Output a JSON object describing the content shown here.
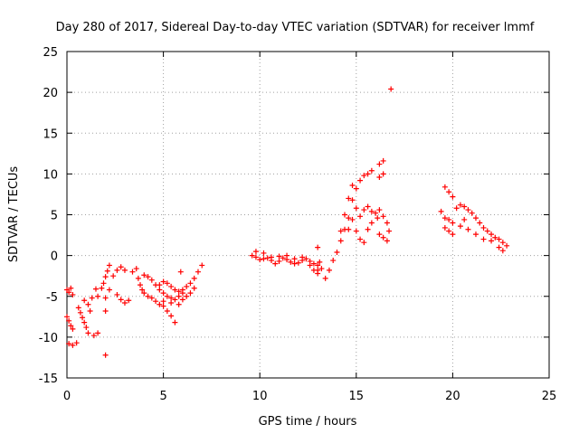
{
  "chart_data": {
    "type": "scatter",
    "title": "Day 280 of 2017, Sidereal Day-to-day VTEC variation (SDTVAR) for receiver lmmf",
    "xlabel": "GPS time / hours",
    "ylabel": "SDTVAR / TECUs",
    "xlim": [
      0,
      25
    ],
    "ylim": [
      -15,
      25
    ],
    "xticks": [
      "0",
      "5",
      "10",
      "15",
      "20",
      "25"
    ],
    "yticks": [
      "-15",
      "-10",
      "-5",
      "0",
      "5",
      "10",
      "15",
      "20",
      "25"
    ],
    "grid": true,
    "marker": "+",
    "color": "#ff0000",
    "series": [
      {
        "name": "SDTVAR",
        "points": [
          [
            0.0,
            -4.2
          ],
          [
            0.1,
            -4.5
          ],
          [
            0.2,
            -4.0
          ],
          [
            0.3,
            -4.8
          ],
          [
            0.0,
            -7.5
          ],
          [
            0.1,
            -8.0
          ],
          [
            0.2,
            -8.6
          ],
          [
            0.3,
            -9.0
          ],
          [
            0.1,
            -10.8
          ],
          [
            0.3,
            -11.0
          ],
          [
            0.5,
            -10.7
          ],
          [
            0.6,
            -6.4
          ],
          [
            0.7,
            -7.0
          ],
          [
            0.8,
            -7.6
          ],
          [
            0.9,
            -8.2
          ],
          [
            1.0,
            -8.8
          ],
          [
            1.1,
            -9.5
          ],
          [
            0.9,
            -5.5
          ],
          [
            1.1,
            -6.0
          ],
          [
            1.3,
            -5.2
          ],
          [
            1.2,
            -6.8
          ],
          [
            1.4,
            -9.8
          ],
          [
            1.6,
            -9.5
          ],
          [
            1.5,
            -4.1
          ],
          [
            1.6,
            -5.0
          ],
          [
            1.8,
            -4.0
          ],
          [
            1.9,
            -3.4
          ],
          [
            2.0,
            -2.6
          ],
          [
            2.1,
            -1.9
          ],
          [
            2.2,
            -1.2
          ],
          [
            2.0,
            -5.2
          ],
          [
            2.0,
            -6.8
          ],
          [
            2.2,
            -4.2
          ],
          [
            2.0,
            -12.2
          ],
          [
            2.4,
            -2.5
          ],
          [
            2.6,
            -1.8
          ],
          [
            2.8,
            -1.4
          ],
          [
            3.0,
            -1.8
          ],
          [
            2.6,
            -4.8
          ],
          [
            2.8,
            -5.4
          ],
          [
            3.0,
            -5.8
          ],
          [
            3.2,
            -5.5
          ],
          [
            3.4,
            -2.0
          ],
          [
            3.6,
            -1.6
          ],
          [
            3.7,
            -2.8
          ],
          [
            3.8,
            -3.6
          ],
          [
            3.9,
            -4.2
          ],
          [
            4.0,
            -4.6
          ],
          [
            4.2,
            -5.0
          ],
          [
            4.4,
            -5.2
          ],
          [
            4.6,
            -5.6
          ],
          [
            4.8,
            -6.0
          ],
          [
            5.0,
            -6.2
          ],
          [
            5.2,
            -6.8
          ],
          [
            5.4,
            -7.4
          ],
          [
            5.6,
            -8.2
          ],
          [
            4.0,
            -2.4
          ],
          [
            4.2,
            -2.6
          ],
          [
            4.4,
            -3.0
          ],
          [
            4.6,
            -3.6
          ],
          [
            4.8,
            -4.2
          ],
          [
            5.0,
            -4.6
          ],
          [
            5.2,
            -5.0
          ],
          [
            5.4,
            -5.2
          ],
          [
            5.6,
            -5.4
          ],
          [
            5.8,
            -5.0
          ],
          [
            6.0,
            -4.6
          ],
          [
            4.8,
            -3.6
          ],
          [
            5.0,
            -3.2
          ],
          [
            5.2,
            -3.4
          ],
          [
            5.4,
            -3.8
          ],
          [
            5.6,
            -4.2
          ],
          [
            5.8,
            -4.4
          ],
          [
            6.0,
            -4.2
          ],
          [
            6.2,
            -3.8
          ],
          [
            6.4,
            -3.4
          ],
          [
            6.6,
            -2.8
          ],
          [
            6.8,
            -2.0
          ],
          [
            7.0,
            -1.2
          ],
          [
            5.0,
            -5.6
          ],
          [
            5.4,
            -5.8
          ],
          [
            5.8,
            -6.0
          ],
          [
            6.0,
            -5.4
          ],
          [
            6.2,
            -5.0
          ],
          [
            6.4,
            -4.6
          ],
          [
            6.6,
            -4.0
          ],
          [
            5.9,
            -2.0
          ],
          [
            9.6,
            0.0
          ],
          [
            9.8,
            -0.2
          ],
          [
            10.0,
            -0.5
          ],
          [
            10.2,
            -0.4
          ],
          [
            10.4,
            -0.3
          ],
          [
            10.6,
            -0.6
          ],
          [
            10.8,
            -1.0
          ],
          [
            11.0,
            -0.7
          ],
          [
            11.2,
            -0.3
          ],
          [
            11.4,
            -0.5
          ],
          [
            11.6,
            -0.8
          ],
          [
            11.8,
            -1.0
          ],
          [
            12.0,
            -0.9
          ],
          [
            12.2,
            -0.6
          ],
          [
            12.4,
            -0.4
          ],
          [
            12.6,
            -0.7
          ],
          [
            12.8,
            -1.0
          ],
          [
            13.0,
            -1.2
          ],
          [
            13.2,
            -1.6
          ],
          [
            9.8,
            0.5
          ],
          [
            10.2,
            0.3
          ],
          [
            10.6,
            -0.2
          ],
          [
            11.0,
            -0.1
          ],
          [
            11.4,
            0.0
          ],
          [
            11.8,
            -0.4
          ],
          [
            12.2,
            -0.2
          ],
          [
            12.6,
            -1.2
          ],
          [
            12.8,
            -1.8
          ],
          [
            13.0,
            -2.2
          ],
          [
            13.1,
            -0.8
          ],
          [
            13.0,
            1.0
          ],
          [
            13.0,
            -1.8
          ],
          [
            13.4,
            -2.8
          ],
          [
            13.6,
            -1.8
          ],
          [
            13.8,
            -0.6
          ],
          [
            14.0,
            0.4
          ],
          [
            14.2,
            1.8
          ],
          [
            14.4,
            3.2
          ],
          [
            14.6,
            4.6
          ],
          [
            14.8,
            6.8
          ],
          [
            15.0,
            8.2
          ],
          [
            15.2,
            9.2
          ],
          [
            15.4,
            9.8
          ],
          [
            15.6,
            10.0
          ],
          [
            15.8,
            10.4
          ],
          [
            14.2,
            3.0
          ],
          [
            14.4,
            5.0
          ],
          [
            14.6,
            7.0
          ],
          [
            14.8,
            8.6
          ],
          [
            15.0,
            5.8
          ],
          [
            15.2,
            4.8
          ],
          [
            15.4,
            5.6
          ],
          [
            15.6,
            6.0
          ],
          [
            15.8,
            5.4
          ],
          [
            16.0,
            5.2
          ],
          [
            16.1,
            4.6
          ],
          [
            14.6,
            3.2
          ],
          [
            14.8,
            4.4
          ],
          [
            15.0,
            3.0
          ],
          [
            15.2,
            2.0
          ],
          [
            15.4,
            1.6
          ],
          [
            15.6,
            3.2
          ],
          [
            15.8,
            4.0
          ],
          [
            16.2,
            11.2
          ],
          [
            16.4,
            11.6
          ],
          [
            16.2,
            9.6
          ],
          [
            16.4,
            10.0
          ],
          [
            16.2,
            5.6
          ],
          [
            16.4,
            4.8
          ],
          [
            16.6,
            4.0
          ],
          [
            16.7,
            3.0
          ],
          [
            16.2,
            2.6
          ],
          [
            16.4,
            2.2
          ],
          [
            16.6,
            1.8
          ],
          [
            16.8,
            20.4
          ],
          [
            19.6,
            8.4
          ],
          [
            19.8,
            7.8
          ],
          [
            20.0,
            7.2
          ],
          [
            19.4,
            5.4
          ],
          [
            19.6,
            4.6
          ],
          [
            19.8,
            4.4
          ],
          [
            20.0,
            4.0
          ],
          [
            19.6,
            3.4
          ],
          [
            19.8,
            3.0
          ],
          [
            20.0,
            2.6
          ],
          [
            20.2,
            5.8
          ],
          [
            20.4,
            6.2
          ],
          [
            20.6,
            6.0
          ],
          [
            20.8,
            5.6
          ],
          [
            21.0,
            5.2
          ],
          [
            21.2,
            4.6
          ],
          [
            21.4,
            4.0
          ],
          [
            21.6,
            3.4
          ],
          [
            21.8,
            3.0
          ],
          [
            22.0,
            2.6
          ],
          [
            22.2,
            2.2
          ],
          [
            22.4,
            2.0
          ],
          [
            22.6,
            1.6
          ],
          [
            22.8,
            1.2
          ],
          [
            20.4,
            3.6
          ],
          [
            20.8,
            3.2
          ],
          [
            21.2,
            2.6
          ],
          [
            21.6,
            2.0
          ],
          [
            22.0,
            1.8
          ],
          [
            22.4,
            1.0
          ],
          [
            22.6,
            0.6
          ],
          [
            20.6,
            4.4
          ]
        ]
      }
    ]
  }
}
